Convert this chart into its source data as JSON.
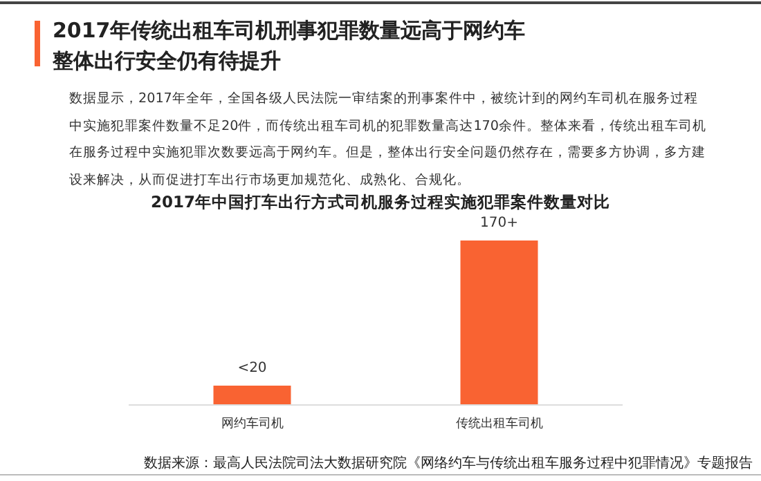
{
  "chart_data": {
    "type": "bar",
    "title": "2017年传统出租车司机刑事犯罪数量远高于网约车整体出行安全仍有待提升",
    "subtitle": "2017年中国打车出行方式司机服务过程实施犯罪案件数量对比",
    "categories": [
      "网约车司机",
      "传统出租车司机"
    ],
    "values": [
      20,
      170
    ],
    "value_labels": [
      "<20",
      "170+"
    ],
    "color": "#f96332",
    "annotations": [
      "数据显示，2017年全年，全国各级人民法院一审结案的刑事案件中，被统计到的网约车司机在服务过程中实施犯罪案件数量不足20件，而传统出租车司机的犯罪数量高达170余件。整体来看，传统出租车司机在服务过程中实施犯罪次数要远高于网约车。但是，整体出行安全问题仍然存在，需要多方协调，多方建设来解决，从而促进打车出行市场更加规范化、成熟化、合规化。",
      "数据来源：最高人民法院司法大数据研究院《网络约车与传统出租车服务过程中犯罪情况》专题报告"
    ]
  }
}
